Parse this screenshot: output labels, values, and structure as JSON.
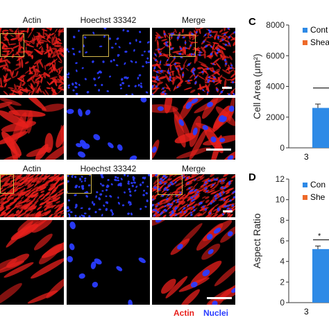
{
  "figure": {
    "top_labels": [
      "Actin",
      "Hoechst 33342",
      "Merge"
    ],
    "bottom_labels": [
      "Actin",
      "Hoechst 33342",
      "Merge"
    ],
    "stain_legend": {
      "actin": "Actin",
      "nuclei": "Nuclei"
    },
    "colors": {
      "actin": "#e8201c",
      "nuclei": "#2a3cff",
      "control_bar": "#2e8ae6",
      "shear_legend": "#ee6a2a",
      "zoom_box": "#d4b84a"
    }
  },
  "chart_data": [
    {
      "type": "bar",
      "panel_letter": "C",
      "ylabel": "Cell Area (μm²)",
      "ylim": [
        0,
        8000
      ],
      "yticks": [
        "0",
        "2000",
        "4000",
        "6000",
        "8000"
      ],
      "categories": [
        "3"
      ],
      "series": [
        {
          "name": "Cont",
          "values": [
            2600
          ],
          "error": [
            250
          ]
        }
      ],
      "legend_entries": [
        "Cont",
        "Shea"
      ],
      "significance_line_y": 3900,
      "significance_mark": ""
    },
    {
      "type": "bar",
      "panel_letter": "D",
      "ylabel": "Aspect Ratio",
      "ylim": [
        0,
        12
      ],
      "yticks": [
        "0",
        "2",
        "4",
        "6",
        "8",
        "10",
        "12"
      ],
      "categories": [
        "3"
      ],
      "series": [
        {
          "name": "Con",
          "values": [
            5.2
          ],
          "error": [
            0.3
          ]
        }
      ],
      "legend_entries": [
        "Con",
        "She"
      ],
      "significance_line_y": 6.1,
      "significance_mark": "*"
    }
  ]
}
